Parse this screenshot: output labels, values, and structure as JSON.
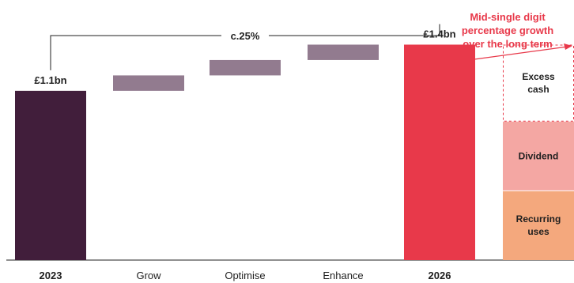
{
  "chart_data": {
    "type": "bar",
    "subtype": "waterfall",
    "title": "",
    "xlabel": "",
    "ylabel": "",
    "unit": "£bn",
    "categories": [
      "2023",
      "Grow",
      "Optimise",
      "Enhance",
      "2026"
    ],
    "series": [
      {
        "values": [
          1.1,
          0.1,
          0.1,
          0.1,
          1.4
        ],
        "kinds": [
          "total",
          "step",
          "step",
          "step",
          "total"
        ]
      }
    ],
    "data_labels": {
      "2023": "£1.1bn",
      "2026": "£1.4bn"
    },
    "bracket": {
      "from": "2023",
      "to": "2026",
      "label": "c.25%"
    },
    "allocation": [
      {
        "label": "Recurring uses",
        "value": 0.45,
        "style": "solid"
      },
      {
        "label": "Dividend",
        "value": 0.45,
        "style": "solid"
      },
      {
        "label": "Excess cash",
        "value": 0.5,
        "style": "dashed"
      }
    ],
    "growth_annotation": "Mid-single digit percentage growth over the long term",
    "ylim": [
      0,
      1.5
    ],
    "grid": false,
    "legend": "none"
  },
  "colors": {
    "start_bar": "#411e3b",
    "step_bar": "#927b8f",
    "end_bar": "#e8394a",
    "recurring": "#f4a87d",
    "dividend": "#f4a7a3",
    "excess_border": "#e8394a",
    "axis": "#1f1f1f"
  }
}
